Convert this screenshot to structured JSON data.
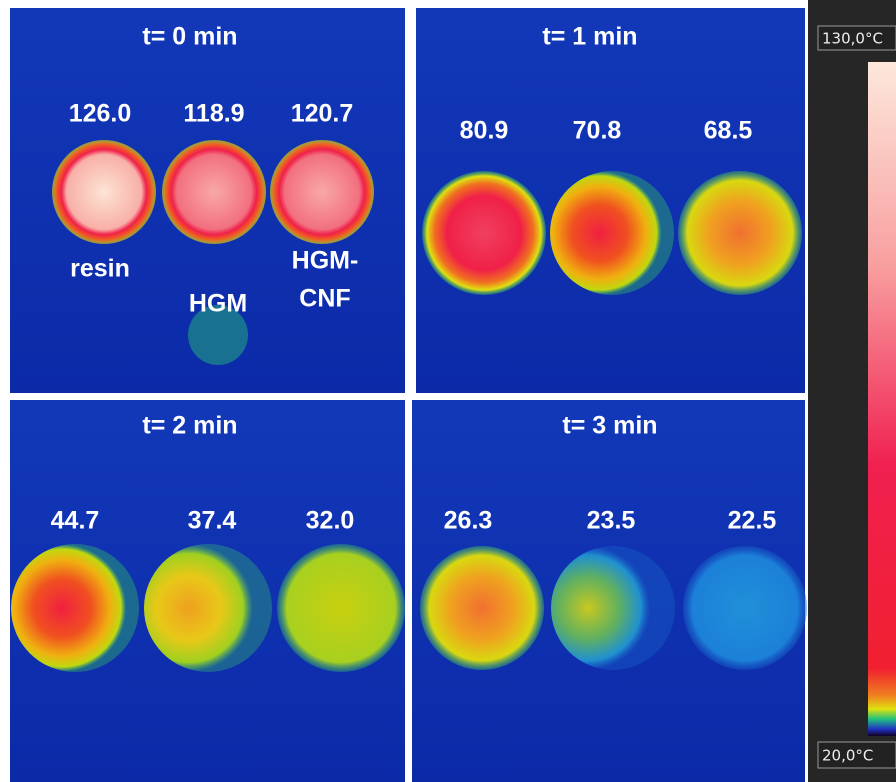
{
  "panels": [
    {
      "title": "t= 0 min",
      "readings": [
        "126.0",
        "118.9",
        "120.7"
      ],
      "labels": [
        "resin",
        "HGM",
        "HGM-",
        "CNF"
      ]
    },
    {
      "title": "t= 1 min",
      "readings": [
        "80.9",
        "70.8",
        "68.5"
      ]
    },
    {
      "title": "t= 2 min",
      "readings": [
        "44.7",
        "37.4",
        "32.0"
      ]
    },
    {
      "title": "t= 3 min",
      "readings": [
        "26.3",
        "23.5",
        "22.5"
      ]
    }
  ],
  "scale": {
    "max": "130,0°C",
    "min": "20,0°C"
  }
}
